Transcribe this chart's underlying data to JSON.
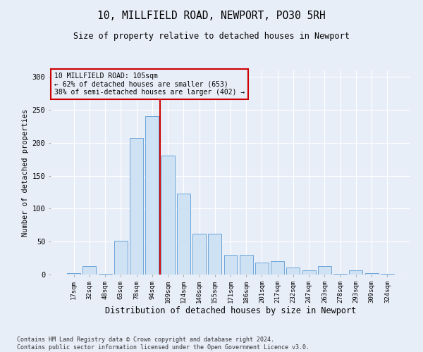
{
  "title1": "10, MILLFIELD ROAD, NEWPORT, PO30 5RH",
  "title2": "Size of property relative to detached houses in Newport",
  "xlabel": "Distribution of detached houses by size in Newport",
  "ylabel": "Number of detached properties",
  "footnote1": "Contains HM Land Registry data © Crown copyright and database right 2024.",
  "footnote2": "Contains public sector information licensed under the Open Government Licence v3.0.",
  "annotation_line1": "10 MILLFIELD ROAD: 105sqm",
  "annotation_line2": "← 62% of detached houses are smaller (653)",
  "annotation_line3": "38% of semi-detached houses are larger (402) →",
  "bar_color": "#cfe2f3",
  "bar_edge_color": "#5b9bd5",
  "line_color": "#cc0000",
  "background_color": "#e8eef8",
  "categories": [
    "17sqm",
    "32sqm",
    "48sqm",
    "63sqm",
    "78sqm",
    "94sqm",
    "109sqm",
    "124sqm",
    "140sqm",
    "155sqm",
    "171sqm",
    "186sqm",
    "201sqm",
    "217sqm",
    "232sqm",
    "247sqm",
    "263sqm",
    "278sqm",
    "293sqm",
    "309sqm",
    "324sqm"
  ],
  "values": [
    2,
    13,
    1,
    51,
    207,
    241,
    181,
    123,
    62,
    62,
    30,
    30,
    18,
    20,
    11,
    6,
    13,
    1,
    6,
    2,
    1
  ],
  "ylim": [
    0,
    310
  ],
  "yticks": [
    0,
    50,
    100,
    150,
    200,
    250,
    300
  ]
}
